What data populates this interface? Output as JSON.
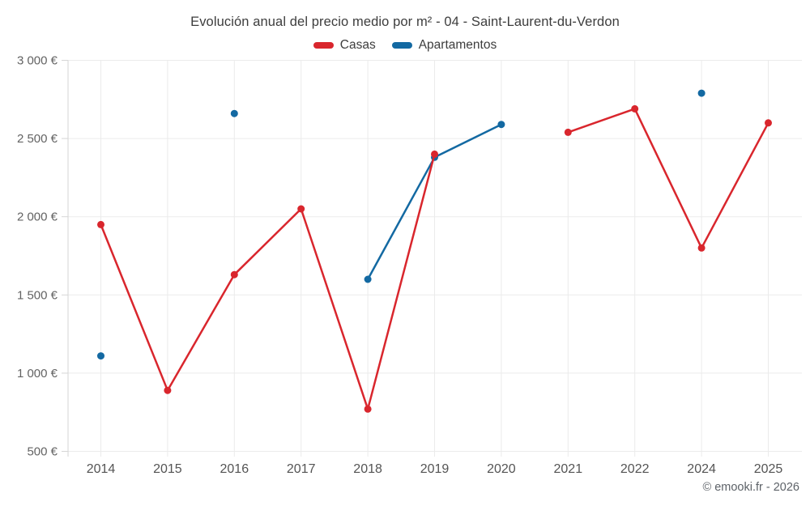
{
  "chart_data": {
    "type": "line",
    "title": "Evolución anual del precio medio por m² - 04 - Saint-Laurent-du-Verdon",
    "categories": [
      "2014",
      "2015",
      "2016",
      "2017",
      "2018",
      "2019",
      "2020",
      "2021",
      "2022",
      "2024",
      "2025"
    ],
    "series": [
      {
        "name": "Casas",
        "color": "#d9262d",
        "values": [
          1950,
          890,
          1630,
          2050,
          770,
          2400,
          null,
          2540,
          2690,
          1800,
          2600
        ]
      },
      {
        "name": "Apartamentos",
        "color": "#1369a2",
        "values": [
          1110,
          null,
          2660,
          null,
          1600,
          2380,
          2590,
          null,
          null,
          2790,
          null
        ]
      }
    ],
    "ylim": [
      500,
      3000
    ],
    "y_ticks": [
      {
        "value": 500,
        "label": "500 €"
      },
      {
        "value": 1000,
        "label": "1 000 €"
      },
      {
        "value": 1500,
        "label": "1 500 €"
      },
      {
        "value": 2000,
        "label": "2 000 €"
      },
      {
        "value": 2500,
        "label": "2 500 €"
      },
      {
        "value": 3000,
        "label": "3 000 €"
      }
    ],
    "grid": true,
    "legend_position": "top",
    "gap_breaks_line": true,
    "attribution": "© emooki.fr - 2026"
  }
}
